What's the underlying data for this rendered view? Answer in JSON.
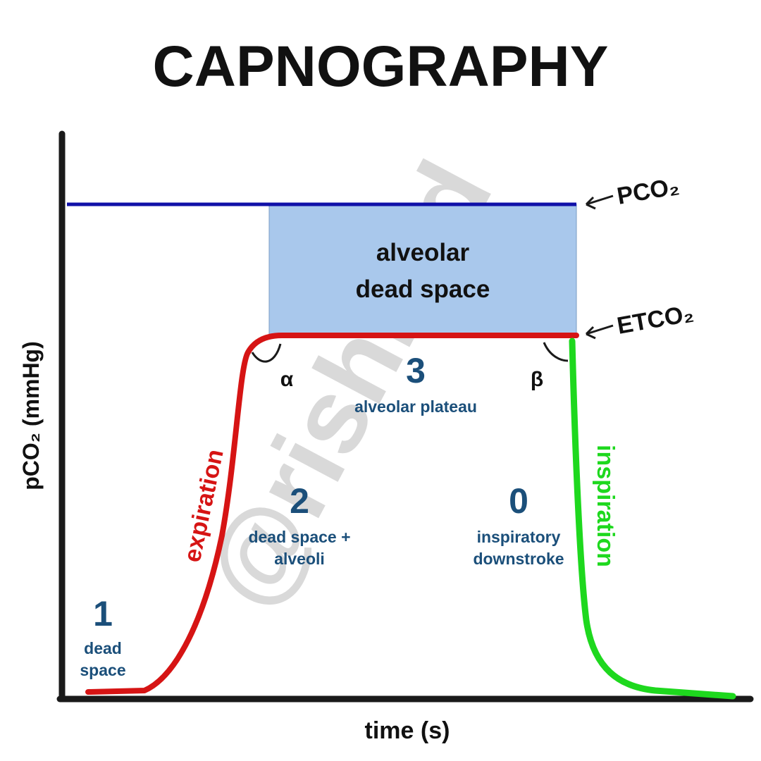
{
  "title": "CAPNOGRAPHY",
  "axes": {
    "y_label": "pCO₂ (mmHg)",
    "x_label": "time (s)"
  },
  "levels": {
    "pco2": "PCO₂",
    "etco2": "ETCO₂"
  },
  "region": {
    "lines": [
      "alveolar",
      "dead space"
    ]
  },
  "angles": {
    "alpha": "α",
    "beta": "β"
  },
  "strokes": {
    "expiration": "expiration",
    "inspiration": "inspiration"
  },
  "phases": [
    {
      "number": "1",
      "lines": [
        "dead",
        "space"
      ]
    },
    {
      "number": "2",
      "lines": [
        "dead space +",
        "alveoli"
      ]
    },
    {
      "number": "3",
      "lines": [
        "alveolar plateau"
      ]
    },
    {
      "number": "0",
      "lines": [
        "inspiratory",
        "downstroke"
      ]
    }
  ],
  "watermark": "@rishimd"
}
